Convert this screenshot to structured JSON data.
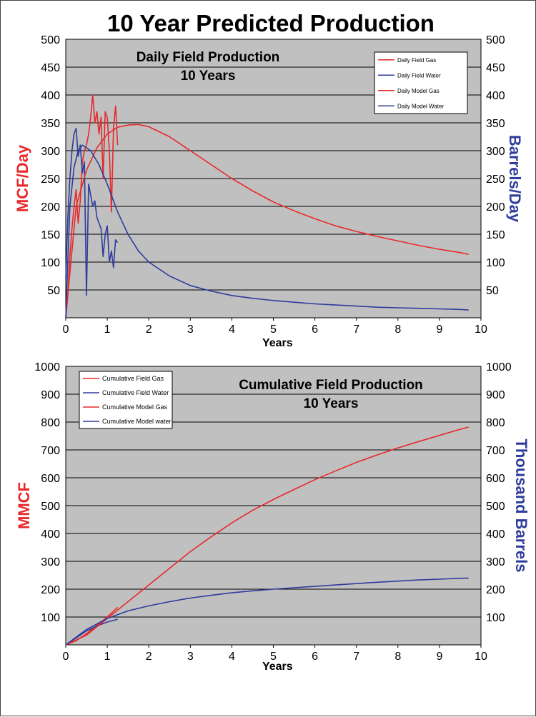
{
  "page_title": "10 Year Predicted Production",
  "colors": {
    "gas": "#e8282a",
    "water": "#2e3c9c",
    "plot_bg": "#c0c0c0",
    "grid": "#000000"
  },
  "chart_data": [
    {
      "type": "line",
      "title": "Daily Field Production",
      "subtitle": "10 Years",
      "xlabel": "Years",
      "ylabel_left": "MCF/Day",
      "ylabel_right": "Barrels/Day",
      "xlim": [
        0,
        10
      ],
      "ylim_left": [
        0,
        500
      ],
      "ylim_right": [
        0,
        500
      ],
      "x_ticks": [
        "0",
        "1",
        "2",
        "3",
        "4",
        "5",
        "6",
        "7",
        "8",
        "9",
        "10"
      ],
      "y_ticks_left": [
        "50",
        "100",
        "150",
        "200",
        "250",
        "300",
        "350",
        "400",
        "450",
        "500"
      ],
      "y_ticks_right": [
        "50",
        "100",
        "150",
        "200",
        "250",
        "300",
        "350",
        "400",
        "450",
        "500"
      ],
      "grid": "horizontal",
      "legend_position": "top-right",
      "legend": [
        "Daily Field Gas",
        "Daily Field Water",
        "Daily Model Gas",
        "Daily Model Water"
      ],
      "series": [
        {
          "name": "Daily Field Gas",
          "axis": "left",
          "color": "#e8282a",
          "x": [
            0,
            0.05,
            0.1,
            0.15,
            0.2,
            0.25,
            0.3,
            0.35,
            0.4,
            0.45,
            0.5,
            0.55,
            0.6,
            0.65,
            0.7,
            0.75,
            0.8,
            0.85,
            0.9,
            0.95,
            1.0,
            1.05,
            1.1,
            1.15,
            1.2,
            1.25
          ],
          "y": [
            0,
            40,
            110,
            160,
            200,
            230,
            170,
            210,
            280,
            300,
            310,
            330,
            360,
            400,
            350,
            370,
            330,
            360,
            250,
            370,
            360,
            300,
            190,
            340,
            380,
            310
          ]
        },
        {
          "name": "Daily Field Water",
          "axis": "left",
          "color": "#2e3c9c",
          "x": [
            0,
            0.05,
            0.1,
            0.15,
            0.2,
            0.25,
            0.3,
            0.35,
            0.4,
            0.45,
            0.5,
            0.55,
            0.6,
            0.65,
            0.7,
            0.75,
            0.8,
            0.85,
            0.9,
            0.95,
            1.0,
            1.05,
            1.1,
            1.15,
            1.2,
            1.25
          ],
          "y": [
            70,
            180,
            250,
            300,
            330,
            340,
            290,
            310,
            260,
            280,
            40,
            240,
            220,
            200,
            210,
            180,
            170,
            160,
            110,
            150,
            165,
            100,
            120,
            90,
            140,
            135
          ]
        },
        {
          "name": "Daily Model Gas",
          "axis": "left",
          "color": "#e8282a",
          "x": [
            0,
            0.25,
            0.5,
            0.75,
            1.0,
            1.25,
            1.5,
            1.75,
            2.0,
            2.5,
            3.0,
            3.5,
            4.0,
            4.5,
            5.0,
            5.5,
            6.0,
            6.5,
            7.0,
            7.5,
            8.0,
            8.5,
            9.0,
            9.5,
            9.7
          ],
          "y": [
            0,
            200,
            265,
            305,
            330,
            342,
            346,
            347,
            343,
            325,
            300,
            275,
            250,
            228,
            208,
            192,
            178,
            165,
            155,
            146,
            138,
            130,
            123,
            117,
            114
          ]
        },
        {
          "name": "Daily Model Water",
          "axis": "left",
          "color": "#2e3c9c",
          "x": [
            0,
            0.1,
            0.2,
            0.3,
            0.4,
            0.6,
            0.8,
            1.0,
            1.25,
            1.5,
            1.75,
            2.0,
            2.5,
            3.0,
            3.5,
            4.0,
            4.5,
            5.0,
            5.5,
            6.0,
            6.5,
            7.0,
            7.5,
            8.0,
            8.5,
            9.0,
            9.5,
            9.7
          ],
          "y": [
            0,
            200,
            270,
            300,
            310,
            300,
            275,
            240,
            190,
            150,
            120,
            100,
            75,
            58,
            48,
            40,
            35,
            31,
            28,
            25,
            23,
            21,
            19,
            18,
            17,
            16,
            15,
            14
          ]
        }
      ]
    },
    {
      "type": "line",
      "title": "Cumulative Field Production",
      "subtitle": "10 Years",
      "xlabel": "Years",
      "ylabel_left": "MMCF",
      "ylabel_right": "Thousand Barrels",
      "xlim": [
        0,
        10
      ],
      "ylim_left": [
        0,
        1000
      ],
      "ylim_right": [
        0,
        1000
      ],
      "x_ticks": [
        "0",
        "1",
        "2",
        "3",
        "4",
        "5",
        "6",
        "7",
        "8",
        "9",
        "10"
      ],
      "y_ticks_left": [
        "100",
        "200",
        "300",
        "400",
        "500",
        "600",
        "700",
        "800",
        "900",
        "1000"
      ],
      "y_ticks_right": [
        "100",
        "200",
        "300",
        "400",
        "500",
        "600",
        "700",
        "800",
        "900",
        "1000"
      ],
      "grid": "horizontal",
      "legend_position": "top-left",
      "legend": [
        "Cumulative Field Gas",
        "Cumulative Field Water",
        "Cumulative Model Gas",
        "Cumulative Model water"
      ],
      "series": [
        {
          "name": "Cumulative Field Gas",
          "axis": "left",
          "color": "#e8282a",
          "x": [
            0,
            0.25,
            0.5,
            0.75,
            1.0,
            1.25
          ],
          "y": [
            0,
            15,
            40,
            70,
            100,
            135
          ]
        },
        {
          "name": "Cumulative Field Water",
          "axis": "left",
          "color": "#2e3c9c",
          "x": [
            0,
            0.25,
            0.5,
            0.75,
            1.0,
            1.25
          ],
          "y": [
            0,
            25,
            50,
            68,
            82,
            92
          ]
        },
        {
          "name": "Cumulative Model Gas",
          "axis": "left",
          "color": "#e8282a",
          "x": [
            0,
            0.5,
            1.0,
            1.5,
            2.0,
            2.5,
            3.0,
            3.5,
            4.0,
            4.5,
            5.0,
            5.5,
            6.0,
            6.5,
            7.0,
            7.5,
            8.0,
            8.5,
            9.0,
            9.5,
            9.7
          ],
          "y": [
            0,
            35,
            95,
            155,
            215,
            275,
            335,
            388,
            438,
            483,
            522,
            558,
            593,
            625,
            655,
            682,
            707,
            730,
            752,
            774,
            782
          ]
        },
        {
          "name": "Cumulative Model water",
          "axis": "left",
          "color": "#2e3c9c",
          "x": [
            0,
            0.5,
            1.0,
            1.5,
            2.0,
            2.5,
            3.0,
            3.5,
            4.0,
            4.5,
            5.0,
            5.5,
            6.0,
            6.5,
            7.0,
            7.5,
            8.0,
            8.5,
            9.0,
            9.5,
            9.7
          ],
          "y": [
            0,
            55,
            95,
            122,
            140,
            155,
            168,
            178,
            187,
            194,
            200,
            205,
            210,
            215,
            220,
            225,
            229,
            233,
            236,
            239,
            240
          ]
        }
      ]
    }
  ]
}
